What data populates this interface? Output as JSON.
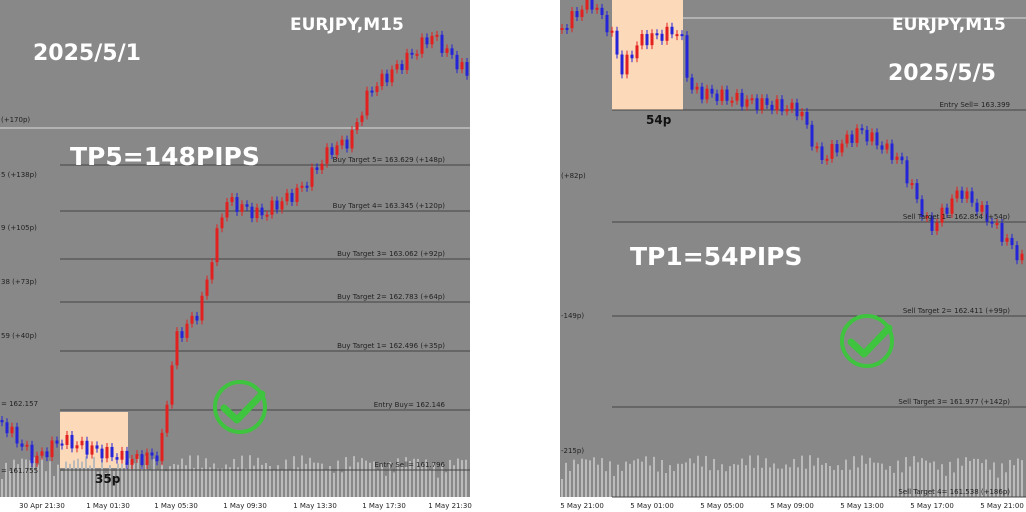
{
  "panels": [
    {
      "symbol": "EURJPY,M15",
      "date": "2025/5/1",
      "tp_note": "TP5=148PIPS",
      "box_label": "35p",
      "levels": [
        "Buy Target 5= 163.629  (+148p)",
        "Buy Target 4= 163.345  (+120p)",
        "Buy Target 3= 163.062  (+92p)",
        "Buy Target 2= 162.783  (+64p)",
        "Buy Target 1= 162.496  (+35p)",
        "Entry Buy= 162.146",
        "Entry Sell= 161.796"
      ],
      "edge_labels": [
        "(+170p)",
        "5 (+138p)",
        "9 (+105p)",
        "38 (+73p)",
        "59 (+40p)",
        "= 162.157",
        "= 161.755"
      ],
      "time_labels": [
        "30 Apr 21:30",
        "1 May 01:30",
        "1 May 05:30",
        "1 May 09:30",
        "1 May 13:30",
        "1 May 17:30",
        "1 May 21:30"
      ]
    },
    {
      "symbol": "EURJPY,M15",
      "date": "2025/5/5",
      "tp_note": "TP1=54PIPS",
      "box_label": "54p",
      "levels": [
        "Entry Sell= 163.399",
        "Sell Target 1= 162.854  (+54p)",
        "Sell Target 2= 162.411  (+99p)",
        "Sell Target 3= 161.977  (+142p)",
        "Sell Target 4= 161.538  (+186p)"
      ],
      "edge_labels": [
        "(+82p)",
        "-149p)",
        "-215p)"
      ],
      "time_labels": [
        "5 May 21:00",
        "5 May 01:00",
        "5 May 05:00",
        "5 May 09:00",
        "5 May 13:00",
        "5 May 17:00",
        "5 May 21:00"
      ]
    }
  ]
}
